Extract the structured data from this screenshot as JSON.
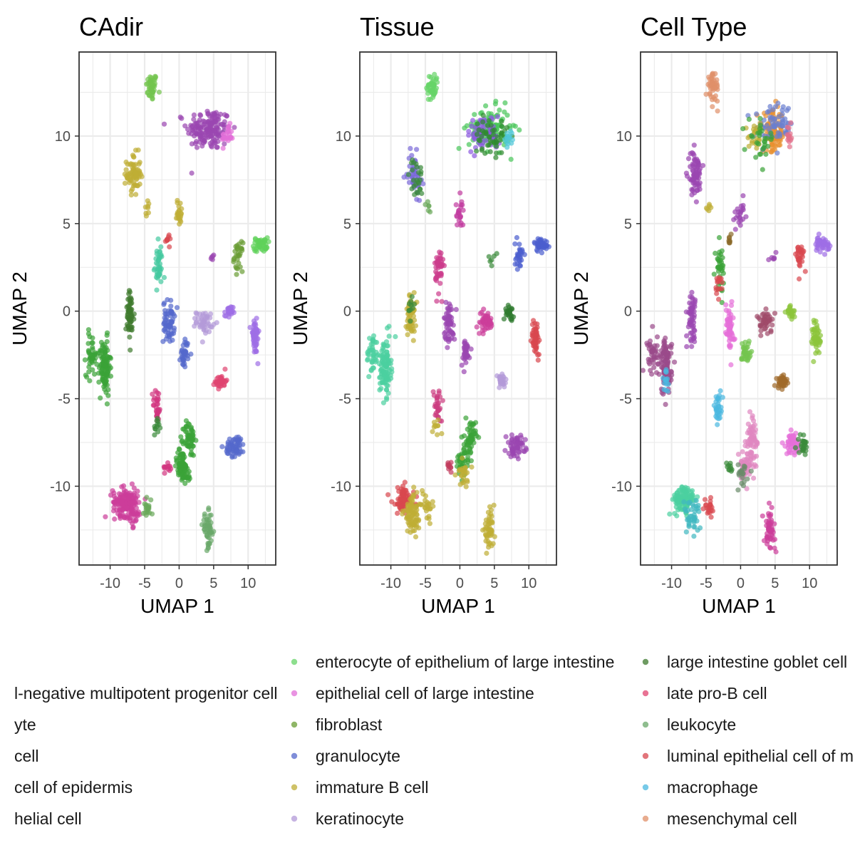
{
  "chart_data": [
    {
      "type": "scatter",
      "title": "CAdir",
      "xlabel": "UMAP 1",
      "ylabel": "UMAP 2",
      "xlim": [
        -14.5,
        14
      ],
      "ylim": [
        -14.5,
        14.8
      ],
      "xticks": [
        "-10",
        "-5",
        "0",
        "5",
        "10"
      ],
      "yticks": [
        "10",
        "5",
        "0",
        "-5",
        "-10"
      ],
      "grid": true,
      "clusters": [
        {
          "x": -4,
          "y": 12.8,
          "sx": 0.4,
          "sy": 0.4,
          "n": 45,
          "color": "#74c44f"
        },
        {
          "x": 4.3,
          "y": 10.4,
          "sx": 1.6,
          "sy": 0.6,
          "n": 160,
          "color": "#9a46b0"
        },
        {
          "x": 7,
          "y": 10,
          "sx": 0.4,
          "sy": 0.3,
          "n": 25,
          "color": "#e26fd8"
        },
        {
          "x": -6.6,
          "y": 7.8,
          "sx": 0.5,
          "sy": 0.6,
          "n": 70,
          "color": "#bfae35"
        },
        {
          "x": -4.6,
          "y": 5.9,
          "sx": 0.2,
          "sy": 0.2,
          "n": 8,
          "color": "#bfae35"
        },
        {
          "x": 0,
          "y": 5.6,
          "sx": 0.3,
          "sy": 0.4,
          "n": 22,
          "color": "#bfae35"
        },
        {
          "x": 11.8,
          "y": 3.8,
          "sx": 0.5,
          "sy": 0.2,
          "n": 45,
          "color": "#5fd15a"
        },
        {
          "x": -1.6,
          "y": 4.1,
          "sx": 0.2,
          "sy": 0.15,
          "n": 10,
          "color": "#d8474f"
        },
        {
          "x": -3,
          "y": 2.6,
          "sx": 0.3,
          "sy": 0.6,
          "n": 40,
          "color": "#45c9a0"
        },
        {
          "x": 8.6,
          "y": 3.1,
          "sx": 0.3,
          "sy": 0.4,
          "n": 30,
          "color": "#6a9d34"
        },
        {
          "x": 4.8,
          "y": 3.1,
          "sx": 0.2,
          "sy": 0.1,
          "n": 5,
          "color": "#9a46b0"
        },
        {
          "x": -7.1,
          "y": -0.3,
          "sx": 0.3,
          "sy": 0.7,
          "n": 60,
          "color": "#3e7a2e"
        },
        {
          "x": -1.5,
          "y": -0.6,
          "sx": 0.4,
          "sy": 0.6,
          "n": 60,
          "color": "#5468cc"
        },
        {
          "x": 0.8,
          "y": -2.4,
          "sx": 0.3,
          "sy": 0.4,
          "n": 35,
          "color": "#5468cc"
        },
        {
          "x": 3.7,
          "y": -0.6,
          "sx": 0.6,
          "sy": 0.3,
          "n": 45,
          "color": "#b39ad8"
        },
        {
          "x": 7.2,
          "y": -0.1,
          "sx": 0.3,
          "sy": 0.2,
          "n": 25,
          "color": "#9e6ee6"
        },
        {
          "x": 11,
          "y": -1.5,
          "sx": 0.3,
          "sy": 0.5,
          "n": 50,
          "color": "#9e6ee6"
        },
        {
          "x": -12.7,
          "y": -2.5,
          "sx": 0.4,
          "sy": 0.6,
          "n": 40,
          "color": "#3aa337"
        },
        {
          "x": -10.8,
          "y": -3.2,
          "sx": 0.4,
          "sy": 0.8,
          "n": 110,
          "color": "#3aa337"
        },
        {
          "x": 6,
          "y": -4,
          "sx": 0.4,
          "sy": 0.2,
          "n": 35,
          "color": "#e04470"
        },
        {
          "x": -3.2,
          "y": -5.4,
          "sx": 0.3,
          "sy": 0.5,
          "n": 30,
          "color": "#d1357f"
        },
        {
          "x": -3.2,
          "y": -6.6,
          "sx": 0.2,
          "sy": 0.3,
          "n": 12,
          "color": "#3a8a3a"
        },
        {
          "x": 1.5,
          "y": -7.3,
          "sx": 0.4,
          "sy": 0.5,
          "n": 60,
          "color": "#3aa337"
        },
        {
          "x": 0.3,
          "y": -8.7,
          "sx": 0.5,
          "sy": 0.4,
          "n": 50,
          "color": "#3aa337"
        },
        {
          "x": 0.9,
          "y": -9.3,
          "sx": 0.4,
          "sy": 0.3,
          "n": 30,
          "color": "#3aa337"
        },
        {
          "x": 8.1,
          "y": -7.7,
          "sx": 0.7,
          "sy": 0.3,
          "n": 60,
          "color": "#5468cc"
        },
        {
          "x": -1.5,
          "y": -8.9,
          "sx": 0.3,
          "sy": 0.15,
          "n": 12,
          "color": "#d1357f"
        },
        {
          "x": -7.8,
          "y": -10.9,
          "sx": 0.9,
          "sy": 0.4,
          "n": 140,
          "color": "#cc3d9a"
        },
        {
          "x": -6.6,
          "y": -11.6,
          "sx": 0.4,
          "sy": 0.5,
          "n": 30,
          "color": "#cc3d9a"
        },
        {
          "x": -4.6,
          "y": -11.2,
          "sx": 0.3,
          "sy": 0.3,
          "n": 20,
          "color": "#6aa85a"
        },
        {
          "x": 4.2,
          "y": -12.5,
          "sx": 0.4,
          "sy": 0.5,
          "n": 50,
          "color": "#6aa86a"
        }
      ]
    },
    {
      "type": "scatter",
      "title": "Tissue",
      "xlabel": "UMAP 1",
      "ylabel": "UMAP 2",
      "xlim": [
        -14.5,
        14
      ],
      "ylim": [
        -14.5,
        14.8
      ],
      "xticks": [
        "-10",
        "-5",
        "0",
        "5",
        "10"
      ],
      "yticks": [
        "10",
        "5",
        "0",
        "-5",
        "-10"
      ],
      "grid": true,
      "clusters": [
        {
          "x": -4,
          "y": 12.8,
          "sx": 0.4,
          "sy": 0.4,
          "n": 45,
          "color": "#67d468"
        },
        {
          "x": 4.3,
          "y": 10.4,
          "sx": 1.5,
          "sy": 0.6,
          "n": 120,
          "color": "#49c65a"
        },
        {
          "x": 3.5,
          "y": 10.2,
          "sx": 1.2,
          "sy": 0.5,
          "n": 60,
          "color": "#8c5ae0"
        },
        {
          "x": 4.5,
          "y": 10,
          "sx": 1.2,
          "sy": 0.5,
          "n": 50,
          "color": "#2f8a2f"
        },
        {
          "x": 7,
          "y": 10,
          "sx": 0.3,
          "sy": 0.3,
          "n": 15,
          "color": "#50c8d8"
        },
        {
          "x": -6.6,
          "y": 7.8,
          "sx": 0.5,
          "sy": 0.6,
          "n": 50,
          "color": "#7a6ad8"
        },
        {
          "x": -6.4,
          "y": 7.6,
          "sx": 0.5,
          "sy": 0.6,
          "n": 25,
          "color": "#3a8a3a"
        },
        {
          "x": -4.6,
          "y": 5.9,
          "sx": 0.2,
          "sy": 0.2,
          "n": 6,
          "color": "#6aa85a"
        },
        {
          "x": 0,
          "y": 5.6,
          "sx": 0.3,
          "sy": 0.4,
          "n": 22,
          "color": "#c23ca0"
        },
        {
          "x": 11.8,
          "y": 3.8,
          "sx": 0.5,
          "sy": 0.2,
          "n": 45,
          "color": "#4b5ecf"
        },
        {
          "x": -3,
          "y": 2.4,
          "sx": 0.3,
          "sy": 0.7,
          "n": 45,
          "color": "#cc3c8c"
        },
        {
          "x": 8.6,
          "y": 3.1,
          "sx": 0.3,
          "sy": 0.4,
          "n": 30,
          "color": "#4b5ecf"
        },
        {
          "x": 4.8,
          "y": 3,
          "sx": 0.3,
          "sy": 0.2,
          "n": 6,
          "color": "#3a8a3a"
        },
        {
          "x": -7.1,
          "y": -0.3,
          "sx": 0.3,
          "sy": 0.7,
          "n": 55,
          "color": "#bfae35"
        },
        {
          "x": -7.2,
          "y": 0.3,
          "sx": 0.3,
          "sy": 0.3,
          "n": 10,
          "color": "#3a8a3a"
        },
        {
          "x": -1.5,
          "y": -0.6,
          "sx": 0.4,
          "sy": 0.6,
          "n": 60,
          "color": "#9a46b0"
        },
        {
          "x": 0.8,
          "y": -2.4,
          "sx": 0.3,
          "sy": 0.4,
          "n": 35,
          "color": "#9a46b0"
        },
        {
          "x": 3.7,
          "y": -0.6,
          "sx": 0.6,
          "sy": 0.3,
          "n": 45,
          "color": "#cc3d9a"
        },
        {
          "x": 7.2,
          "y": -0.1,
          "sx": 0.3,
          "sy": 0.2,
          "n": 25,
          "color": "#2f7a2f"
        },
        {
          "x": 11,
          "y": -1.5,
          "sx": 0.3,
          "sy": 0.5,
          "n": 50,
          "color": "#d8474f"
        },
        {
          "x": -12.7,
          "y": -2.5,
          "sx": 0.4,
          "sy": 0.6,
          "n": 40,
          "color": "#4bd0a0"
        },
        {
          "x": -10.8,
          "y": -3.2,
          "sx": 0.4,
          "sy": 0.8,
          "n": 110,
          "color": "#4bd0a0"
        },
        {
          "x": 6,
          "y": -4,
          "sx": 0.4,
          "sy": 0.2,
          "n": 35,
          "color": "#b39ad8"
        },
        {
          "x": -3.2,
          "y": -5.4,
          "sx": 0.3,
          "sy": 0.5,
          "n": 30,
          "color": "#cc3d80"
        },
        {
          "x": -3.4,
          "y": -6.6,
          "sx": 0.3,
          "sy": 0.3,
          "n": 10,
          "color": "#bfae35"
        },
        {
          "x": 1.5,
          "y": -7.3,
          "sx": 0.4,
          "sy": 0.5,
          "n": 55,
          "color": "#3aa337"
        },
        {
          "x": 0.3,
          "y": -8.7,
          "sx": 0.5,
          "sy": 0.4,
          "n": 40,
          "color": "#3aa337"
        },
        {
          "x": 0.6,
          "y": -9.2,
          "sx": 0.5,
          "sy": 0.4,
          "n": 25,
          "color": "#bfae35"
        },
        {
          "x": 8.1,
          "y": -7.7,
          "sx": 0.7,
          "sy": 0.3,
          "n": 60,
          "color": "#9a46b0"
        },
        {
          "x": -1.5,
          "y": -8.9,
          "sx": 0.3,
          "sy": 0.15,
          "n": 10,
          "color": "#c23c5c"
        },
        {
          "x": -8.2,
          "y": -10.8,
          "sx": 0.8,
          "sy": 0.4,
          "n": 80,
          "color": "#d8474f"
        },
        {
          "x": -6.8,
          "y": -11.6,
          "sx": 0.7,
          "sy": 0.6,
          "n": 80,
          "color": "#bfae35"
        },
        {
          "x": -4.6,
          "y": -11.2,
          "sx": 0.3,
          "sy": 0.3,
          "n": 20,
          "color": "#bfae35"
        },
        {
          "x": 4.2,
          "y": -12.5,
          "sx": 0.4,
          "sy": 0.5,
          "n": 50,
          "color": "#bfae35"
        }
      ]
    },
    {
      "type": "scatter",
      "title": "Cell Type",
      "xlabel": "UMAP 1",
      "ylabel": "UMAP 2",
      "xlim": [
        -14.5,
        14
      ],
      "ylim": [
        -14.5,
        14.8
      ],
      "xticks": [
        "-10",
        "-5",
        "0",
        "5",
        "10"
      ],
      "yticks": [
        "10",
        "5",
        "0",
        "-5",
        "-10"
      ],
      "grid": true,
      "clusters": [
        {
          "x": -4,
          "y": 12.8,
          "sx": 0.4,
          "sy": 0.4,
          "n": 45,
          "color": "#e0906a"
        },
        {
          "x": 4.8,
          "y": 10.2,
          "sx": 0.8,
          "sy": 0.6,
          "n": 90,
          "color": "#e89030"
        },
        {
          "x": 4.8,
          "y": 10.6,
          "sx": 1.4,
          "sy": 0.6,
          "n": 70,
          "color": "#6a7fd0"
        },
        {
          "x": 2.3,
          "y": 10,
          "sx": 0.6,
          "sy": 0.4,
          "n": 25,
          "color": "#bfae35"
        },
        {
          "x": 3,
          "y": 9.8,
          "sx": 0.9,
          "sy": 0.5,
          "n": 30,
          "color": "#3aa337"
        },
        {
          "x": 7,
          "y": 10,
          "sx": 0.3,
          "sy": 0.3,
          "n": 15,
          "color": "#e26f8a"
        },
        {
          "x": -6.6,
          "y": 7.8,
          "sx": 0.5,
          "sy": 0.6,
          "n": 70,
          "color": "#9a46b0"
        },
        {
          "x": -4.6,
          "y": 5.9,
          "sx": 0.2,
          "sy": 0.2,
          "n": 6,
          "color": "#bfae35"
        },
        {
          "x": 0,
          "y": 5.6,
          "sx": 0.3,
          "sy": 0.4,
          "n": 22,
          "color": "#9a46b0"
        },
        {
          "x": -1.6,
          "y": 4.1,
          "sx": 0.2,
          "sy": 0.15,
          "n": 8,
          "color": "#8a6a2a"
        },
        {
          "x": 11.8,
          "y": 3.8,
          "sx": 0.5,
          "sy": 0.2,
          "n": 45,
          "color": "#9e6ee6"
        },
        {
          "x": -3,
          "y": 2.6,
          "sx": 0.3,
          "sy": 0.6,
          "n": 35,
          "color": "#3aa337"
        },
        {
          "x": -3.2,
          "y": 1.6,
          "sx": 0.3,
          "sy": 0.4,
          "n": 15,
          "color": "#d8474f"
        },
        {
          "x": 8.6,
          "y": 3.1,
          "sx": 0.3,
          "sy": 0.4,
          "n": 30,
          "color": "#d8474f"
        },
        {
          "x": 4.8,
          "y": 3,
          "sx": 0.3,
          "sy": 0.2,
          "n": 6,
          "color": "#9a46b0"
        },
        {
          "x": -7.1,
          "y": -0.3,
          "sx": 0.3,
          "sy": 0.7,
          "n": 55,
          "color": "#9a46b0"
        },
        {
          "x": -1.6,
          "y": -0.8,
          "sx": 0.3,
          "sy": 0.7,
          "n": 55,
          "color": "#e66fd8"
        },
        {
          "x": 0.8,
          "y": -2.4,
          "sx": 0.3,
          "sy": 0.4,
          "n": 35,
          "color": "#74c44f"
        },
        {
          "x": 3.7,
          "y": -0.6,
          "sx": 0.6,
          "sy": 0.3,
          "n": 45,
          "color": "#a04a6a"
        },
        {
          "x": 7.2,
          "y": -0.1,
          "sx": 0.3,
          "sy": 0.2,
          "n": 25,
          "color": "#8cc43a"
        },
        {
          "x": 11,
          "y": -1.5,
          "sx": 0.3,
          "sy": 0.5,
          "n": 50,
          "color": "#8cc43a"
        },
        {
          "x": -12.7,
          "y": -2.5,
          "sx": 0.4,
          "sy": 0.6,
          "n": 40,
          "color": "#9a4a8a"
        },
        {
          "x": -10.8,
          "y": -3.2,
          "sx": 0.4,
          "sy": 0.8,
          "n": 100,
          "color": "#9a4a8a"
        },
        {
          "x": -10.8,
          "y": -4,
          "sx": 0.3,
          "sy": 0.3,
          "n": 15,
          "color": "#4ab8e0"
        },
        {
          "x": 6,
          "y": -4,
          "sx": 0.4,
          "sy": 0.2,
          "n": 35,
          "color": "#a06a2a"
        },
        {
          "x": -3.2,
          "y": -5.6,
          "sx": 0.3,
          "sy": 0.5,
          "n": 30,
          "color": "#4ab8e0"
        },
        {
          "x": 1.6,
          "y": -7.4,
          "sx": 0.4,
          "sy": 0.6,
          "n": 60,
          "color": "#e088c0"
        },
        {
          "x": 0.6,
          "y": -9,
          "sx": 0.5,
          "sy": 0.4,
          "n": 45,
          "color": "#e088c0"
        },
        {
          "x": 0.4,
          "y": -9.2,
          "sx": 0.6,
          "sy": 0.4,
          "n": 20,
          "color": "#6a8a6a"
        },
        {
          "x": 7.6,
          "y": -7.6,
          "sx": 0.5,
          "sy": 0.3,
          "n": 50,
          "color": "#e66fd8"
        },
        {
          "x": 9,
          "y": -7.6,
          "sx": 0.4,
          "sy": 0.3,
          "n": 25,
          "color": "#3a8a3a"
        },
        {
          "x": -1.5,
          "y": -8.9,
          "sx": 0.3,
          "sy": 0.15,
          "n": 10,
          "color": "#3a8a3a"
        },
        {
          "x": -8.2,
          "y": -10.8,
          "sx": 0.8,
          "sy": 0.4,
          "n": 110,
          "color": "#4bd0a0"
        },
        {
          "x": -7,
          "y": -11.6,
          "sx": 0.6,
          "sy": 0.5,
          "n": 40,
          "color": "#40b8c0"
        },
        {
          "x": -4.6,
          "y": -11.2,
          "sx": 0.3,
          "sy": 0.3,
          "n": 20,
          "color": "#d8474f"
        },
        {
          "x": 4.2,
          "y": -12.5,
          "sx": 0.4,
          "sy": 0.5,
          "n": 50,
          "color": "#cc3d9a"
        }
      ]
    }
  ],
  "legend": {
    "columns": [
      [
        {
          "label": "",
          "color": ""
        },
        {
          "label": "l-negative multipotent progenitor cell",
          "color": ""
        },
        {
          "label": "yte",
          "color": ""
        },
        {
          "label": "cell",
          "color": ""
        },
        {
          "label": "cell of epidermis",
          "color": ""
        },
        {
          "label": "helial cell",
          "color": ""
        }
      ],
      [
        {
          "label": "enterocyte of epithelium of large intestine",
          "color": "#67d468"
        },
        {
          "label": "epithelial cell of large intestine",
          "color": "#e26fd8"
        },
        {
          "label": "fibroblast",
          "color": "#6a9d34"
        },
        {
          "label": "granulocyte",
          "color": "#5468cc"
        },
        {
          "label": "immature B cell",
          "color": "#bfae35"
        },
        {
          "label": "keratinocyte",
          "color": "#b39ad8"
        }
      ],
      [
        {
          "label": "large intestine goblet cell",
          "color": "#3e7a2e"
        },
        {
          "label": "late pro-B cell",
          "color": "#e04470"
        },
        {
          "label": "leukocyte",
          "color": "#6aa86a"
        },
        {
          "label": "luminal epithelial cell of m",
          "color": "#d8474f"
        },
        {
          "label": "macrophage",
          "color": "#4ab8e0"
        },
        {
          "label": "mesenchymal cell",
          "color": "#e0906a"
        }
      ]
    ]
  }
}
